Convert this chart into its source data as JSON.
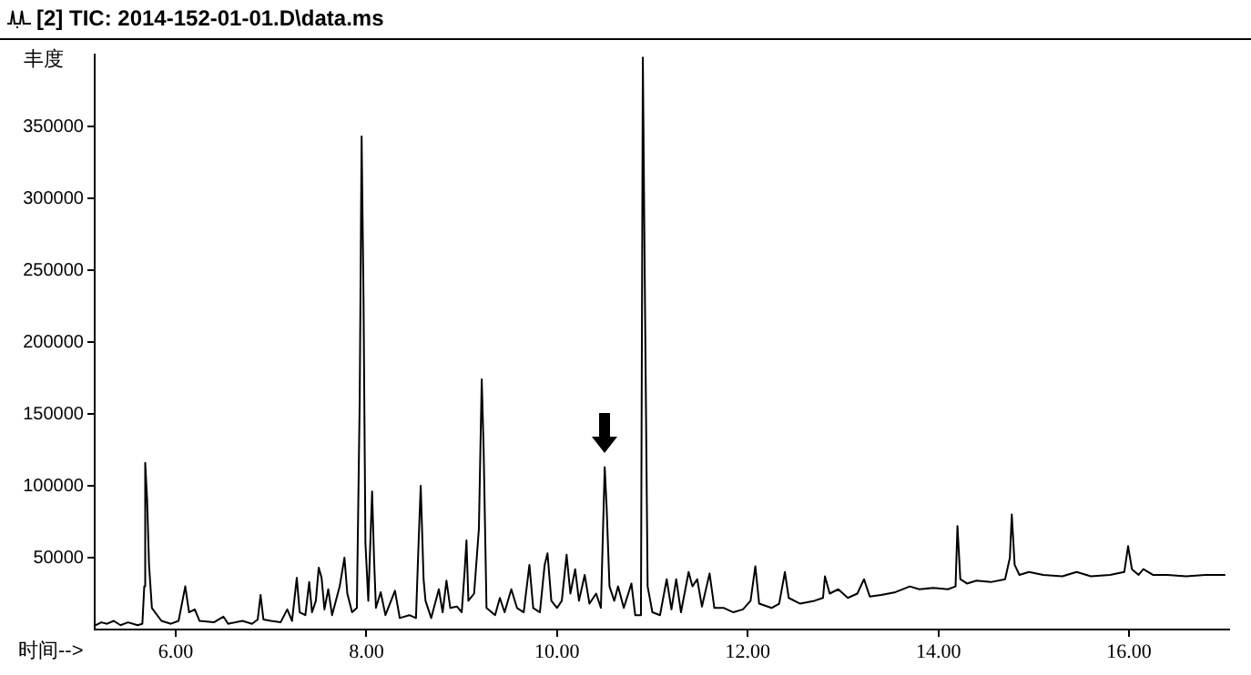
{
  "chart_data": {
    "type": "line",
    "title": "[2] TIC: 2014-152-01-01.D\\data.ms",
    "ylabel": "丰度",
    "xlabel": "时间-->",
    "xlim": [
      5.15,
      17.05
    ],
    "xticks": [
      {
        "value": 6,
        "label": "6.00"
      },
      {
        "value": 8,
        "label": "8.00"
      },
      {
        "value": 10,
        "label": "10.00"
      },
      {
        "value": 12,
        "label": "12.00"
      },
      {
        "value": 14,
        "label": "14.00"
      },
      {
        "value": 16,
        "label": "16.00"
      }
    ],
    "ylim": [
      0,
      400000
    ],
    "yticks": [
      50000,
      100000,
      150000,
      200000,
      250000,
      300000,
      350000
    ],
    "grid": false,
    "legend": false,
    "marker": "none",
    "line_style": "solid",
    "series": [
      {
        "color": "#000000",
        "x": [
          5.16,
          5.22,
          5.28,
          5.35,
          5.42,
          5.5,
          5.6,
          5.65,
          5.67,
          5.68,
          5.7,
          5.72,
          5.75,
          5.85,
          5.95,
          6.03,
          6.1,
          6.14,
          6.2,
          6.25,
          6.4,
          6.5,
          6.55,
          6.7,
          6.8,
          6.86,
          6.89,
          6.92,
          7.0,
          7.1,
          7.17,
          7.22,
          7.27,
          7.3,
          7.36,
          7.4,
          7.43,
          7.47,
          7.5,
          7.53,
          7.56,
          7.6,
          7.64,
          7.72,
          7.77,
          7.8,
          7.85,
          7.9,
          7.93,
          7.95,
          7.97,
          7.99,
          8.02,
          8.06,
          8.08,
          8.1,
          8.15,
          8.2,
          8.3,
          8.35,
          8.45,
          8.52,
          8.55,
          8.57,
          8.6,
          8.62,
          8.68,
          8.76,
          8.8,
          8.84,
          8.88,
          8.95,
          9.0,
          9.03,
          9.05,
          9.07,
          9.13,
          9.18,
          9.21,
          9.23,
          9.26,
          9.35,
          9.4,
          9.45,
          9.52,
          9.58,
          9.65,
          9.71,
          9.75,
          9.82,
          9.87,
          9.9,
          9.94,
          10.0,
          10.05,
          10.1,
          10.14,
          10.19,
          10.23,
          10.29,
          10.34,
          10.41,
          10.46,
          10.5,
          10.52,
          10.55,
          10.6,
          10.64,
          10.7,
          10.78,
          10.82,
          10.88,
          10.9,
          10.92,
          10.95,
          11.0,
          11.08,
          11.15,
          11.2,
          11.25,
          11.3,
          11.38,
          11.42,
          11.47,
          11.52,
          11.6,
          11.65,
          11.75,
          11.85,
          11.95,
          12.03,
          12.08,
          12.12,
          12.25,
          12.33,
          12.39,
          12.43,
          12.55,
          12.7,
          12.79,
          12.81,
          12.86,
          12.95,
          13.05,
          13.15,
          13.22,
          13.28,
          13.4,
          13.55,
          13.7,
          13.8,
          13.95,
          14.1,
          14.18,
          14.2,
          14.23,
          14.3,
          14.4,
          14.55,
          14.7,
          14.75,
          14.77,
          14.8,
          14.85,
          14.95,
          15.1,
          15.3,
          15.45,
          15.6,
          15.8,
          15.95,
          15.99,
          16.03,
          16.1,
          16.15,
          16.25,
          16.4,
          16.6,
          16.8,
          17.01
        ],
        "values": [
          3000,
          5000,
          4000,
          6000,
          3000,
          5000,
          3000,
          4000,
          30000,
          116000,
          90000,
          45000,
          15000,
          6000,
          4000,
          6000,
          30000,
          12000,
          14000,
          6000,
          5000,
          9000,
          4000,
          6000,
          4000,
          7000,
          24000,
          7000,
          6000,
          5000,
          14000,
          6000,
          36000,
          12000,
          10000,
          33000,
          12000,
          20000,
          43000,
          36000,
          14000,
          28000,
          10000,
          30000,
          50000,
          25000,
          12000,
          15000,
          160000,
          343000,
          230000,
          60000,
          20000,
          96000,
          50000,
          15000,
          26000,
          10000,
          27000,
          8000,
          10000,
          8000,
          65000,
          100000,
          35000,
          20000,
          8000,
          28000,
          12000,
          34000,
          15000,
          16000,
          12000,
          40000,
          62000,
          20000,
          25000,
          70000,
          174000,
          125000,
          15000,
          10000,
          22000,
          12000,
          28000,
          15000,
          12000,
          45000,
          15000,
          12000,
          45000,
          53000,
          20000,
          15000,
          20000,
          52000,
          25000,
          42000,
          20000,
          38000,
          18000,
          25000,
          15000,
          113000,
          85000,
          30000,
          20000,
          30000,
          15000,
          32000,
          10000,
          10000,
          398000,
          245000,
          30000,
          12000,
          10000,
          35000,
          14000,
          35000,
          12000,
          40000,
          30000,
          35000,
          16000,
          39000,
          15000,
          15000,
          12000,
          14000,
          20000,
          44000,
          18000,
          15000,
          18000,
          40000,
          22000,
          18000,
          20000,
          22000,
          37000,
          25000,
          28000,
          22000,
          25000,
          35000,
          23000,
          24000,
          26000,
          30000,
          28000,
          29000,
          28000,
          30000,
          72000,
          35000,
          32000,
          34000,
          33000,
          35000,
          50000,
          80000,
          45000,
          38000,
          40000,
          38000,
          37000,
          40000,
          37000,
          38000,
          40000,
          58000,
          42000,
          38000,
          42000,
          38000,
          38000,
          37000,
          38000,
          38000
        ]
      }
    ]
  }
}
